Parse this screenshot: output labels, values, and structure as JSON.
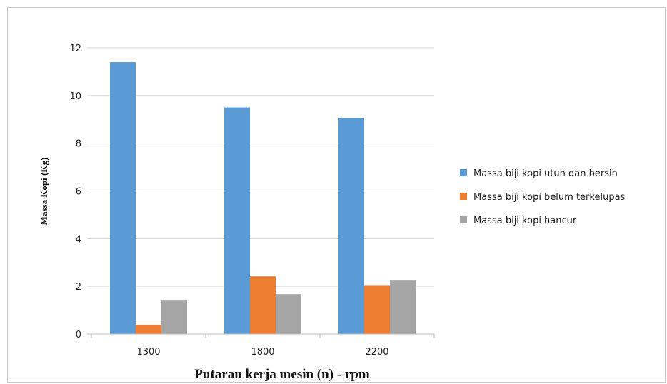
{
  "chart_data": {
    "type": "bar",
    "categories": [
      "1300",
      "1800",
      "2200"
    ],
    "series": [
      {
        "name": "Massa biji kopi utuh dan bersih",
        "values": [
          11.4,
          9.5,
          9.05
        ],
        "color": "#5B9BD5"
      },
      {
        "name": "Massa biji kopi belum terkelupas",
        "values": [
          0.38,
          2.42,
          2.05
        ],
        "color": "#ED7D31"
      },
      {
        "name": "Massa biji kopi hancur",
        "values": [
          1.4,
          1.67,
          2.27
        ],
        "color": "#A5A5A5"
      }
    ],
    "title": "",
    "xlabel": "Putaran kerja mesin (n) - rpm",
    "ylabel": "Massa Kopi (Kg)",
    "ylim": [
      0,
      12
    ],
    "yticks": [
      "0",
      "2",
      "4",
      "6",
      "8",
      "10",
      "12"
    ],
    "grid": true,
    "legend_position": "right"
  }
}
